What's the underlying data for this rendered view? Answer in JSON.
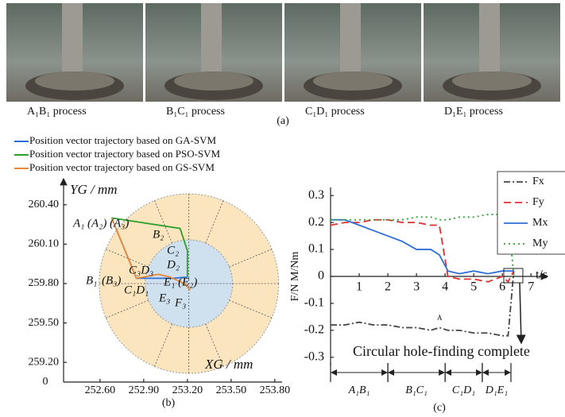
{
  "panel_a": {
    "captions": [
      "A₁B₁ process",
      "B₁C₁ process",
      "C₁D₁ process",
      "D₁E₁ process"
    ],
    "label": "(a)"
  },
  "chart_data": [
    {
      "type": "line",
      "label": "(b)",
      "xlabel": "XG / mm",
      "ylabel": "YG / mm",
      "origin_label": "0",
      "xlim": [
        252.35,
        253.85
      ],
      "ylim": [
        259.05,
        260.55
      ],
      "xticks": [
        {
          "value": 252.6,
          "label": "252.60"
        },
        {
          "value": 252.9,
          "label": "252.90"
        },
        {
          "value": 253.2,
          "label": "253.20"
        },
        {
          "value": 253.5,
          "label": "253.50"
        },
        {
          "value": 253.8,
          "label": "253.80"
        }
      ],
      "yticks": [
        {
          "value": 259.2,
          "label": "259.20"
        },
        {
          "value": 259.5,
          "label": "259.50"
        },
        {
          "value": 259.8,
          "label": "259.80"
        },
        {
          "value": 260.1,
          "label": "260.10"
        },
        {
          "value": 260.4,
          "label": "260.40"
        }
      ],
      "series": [
        {
          "name": "Position vector trajectory based on GA-SVM",
          "color": "#2e6fd8",
          "x": [
            252.68,
            252.85,
            252.95,
            253.1,
            253.2
          ],
          "values": [
            260.3,
            259.84,
            259.84,
            259.84,
            259.85
          ]
        },
        {
          "name": "Position vector trajectory based on PSO-SVM",
          "color": "#2ca02c",
          "x": [
            252.68,
            253.15,
            253.2,
            253.2,
            253.2
          ],
          "values": [
            260.3,
            260.22,
            260.05,
            259.95,
            259.85
          ]
        },
        {
          "name": "Position vector trajectory based on GS-SVM",
          "color": "#e8893a",
          "x": [
            252.68,
            252.85,
            253.0,
            253.08,
            253.18,
            253.22
          ],
          "values": [
            260.3,
            259.84,
            259.87,
            259.85,
            259.8,
            259.75
          ]
        }
      ],
      "point_labels": [
        {
          "text": "A₁",
          "color": "#2a2ad0"
        },
        {
          "text": "(A₂)",
          "color": "#2ca02c"
        },
        {
          "text": "(A₃)",
          "color": "#e8893a"
        },
        {
          "text": "B₂",
          "color": "#2ca02c"
        },
        {
          "text": "C₂",
          "color": "#2ca02c"
        },
        {
          "text": "D₂",
          "color": "#2ca02c"
        },
        {
          "text": "B₁",
          "color": "#2a2ad0"
        },
        {
          "text": "(B₃)",
          "color": "#e8893a"
        },
        {
          "text": "C₃D₃",
          "color": "#e8893a"
        },
        {
          "text": "C₁D₁",
          "color": "#2a2ad0"
        },
        {
          "text": "E₁",
          "color": "#2a2ad0"
        },
        {
          "text": "(E₂)",
          "color": "#2ca02c"
        },
        {
          "text": "E₃",
          "color": "#e8893a"
        },
        {
          "text": "F₃",
          "color": "#e8893a"
        }
      ]
    },
    {
      "type": "line",
      "label": "(c)",
      "xlabel": "t/s",
      "ylabel": "F/N M/Nm",
      "xlim": [
        0,
        7.3
      ],
      "ylim": [
        -0.33,
        0.33
      ],
      "xticks": [
        1,
        2,
        3,
        4,
        5,
        6,
        7
      ],
      "yticks": [
        -0.3,
        -0.2,
        -0.1,
        0,
        0.1,
        0.2,
        0.3
      ],
      "x": [
        0,
        0.5,
        1,
        1.5,
        2,
        2.5,
        3,
        3.5,
        3.8,
        4.1,
        4.5,
        5,
        5.5,
        6,
        6.2,
        6.4
      ],
      "series": [
        {
          "name": "Fx",
          "color": "#444444",
          "dash": "8 3 2 3",
          "values": [
            -0.18,
            -0.18,
            -0.17,
            -0.18,
            -0.18,
            -0.19,
            -0.19,
            -0.2,
            -0.19,
            -0.2,
            -0.2,
            -0.21,
            -0.21,
            -0.22,
            -0.22,
            0.02
          ]
        },
        {
          "name": "Fy",
          "color": "#e03030",
          "dash": "9 5",
          "values": [
            0.19,
            0.2,
            0.2,
            0.21,
            0.21,
            0.2,
            0.2,
            0.19,
            0.19,
            0.0,
            -0.01,
            -0.01,
            -0.02,
            0.0,
            -0.02,
            0.02
          ]
        },
        {
          "name": "Mx",
          "color": "#2e6fd8",
          "dash": "",
          "values": [
            0.21,
            0.21,
            0.19,
            0.17,
            0.15,
            0.13,
            0.1,
            0.1,
            0.08,
            0.02,
            0.01,
            0.02,
            0.01,
            0.02,
            0.02,
            0.02
          ]
        },
        {
          "name": "My",
          "color": "#2ca02c",
          "dash": "2 4",
          "values": [
            0.21,
            0.21,
            0.21,
            0.21,
            0.21,
            0.21,
            0.22,
            0.22,
            0.21,
            0.21,
            0.22,
            0.22,
            0.23,
            0.23,
            0.23,
            0.0
          ]
        }
      ],
      "annotations": [
        "Circular hole-finding complete",
        "A"
      ],
      "phases": [
        {
          "label": "A₁B₁",
          "start": 0,
          "end": 2
        },
        {
          "label": "B₁C₁",
          "start": 2,
          "end": 4
        },
        {
          "label": "C₁D₁",
          "start": 4,
          "end": 5.3
        },
        {
          "label": "D₁E₁",
          "start": 5.3,
          "end": 6.3
        }
      ]
    }
  ]
}
